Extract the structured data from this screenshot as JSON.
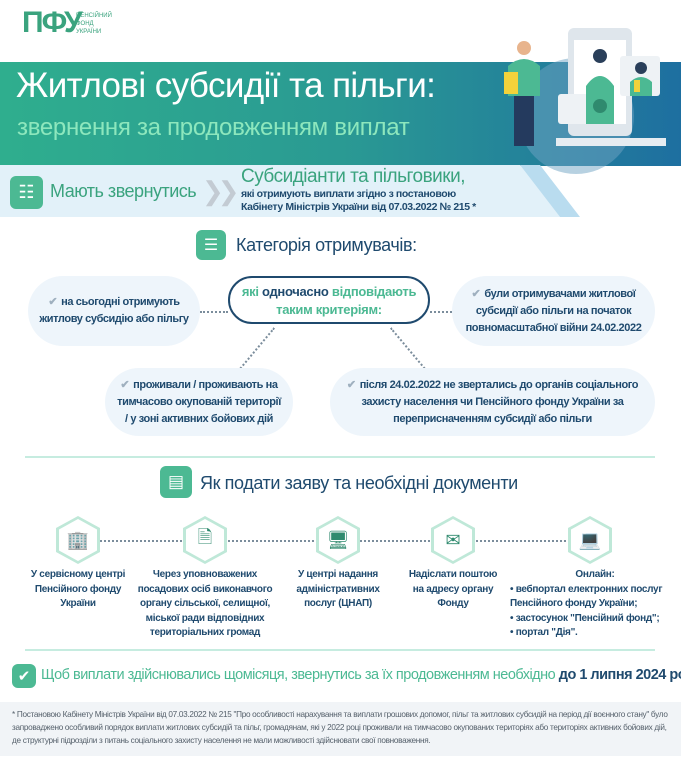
{
  "logo": {
    "abbr": "ПФУ",
    "line1": "ПЕНСІЙНИЙ",
    "line2": "ФОНД",
    "line3": "УКРАЇНИ"
  },
  "header": {
    "title": "Житлові субсидії та пільги:",
    "subtitle": "звернення за продовженням виплат"
  },
  "who": {
    "label": "Мають звернутись",
    "heading": "Субсидіанти та пільговики,",
    "line1": "які отримують виплати згідно з постановою",
    "line2": "Кабінету Міністрів України від 07.03.2022 № 215 *"
  },
  "category": {
    "title": "Категорія отримувачів:",
    "center": {
      "w1": "які",
      "w2": "одночасно",
      "w3": "відповідають",
      "w4": "таким критеріям:"
    },
    "criteria": [
      "на сьогодні отримують житлову субсидію або пільгу",
      "були отримувачами житлової субсидії або пільги на початок повномасштабної війни 24.02.2022",
      "проживали / проживають на тимчасово окупованій території / у зоні активних бойових дій",
      "після 24.02.2022 не звертались до органів соціального захисту населення чи Пенсійного фонду України за переприсначенням субсидії або пільги"
    ]
  },
  "how": {
    "title": "Як подати заяву та необхідні документи",
    "steps": [
      {
        "icon": "building-icon",
        "text": "У сервісному центрі Пенсійного фонду України"
      },
      {
        "icon": "document-icon",
        "text": "Через уповноважених посадових осіб виконавчого органу сільської, селищної, міської ради відповідних територіальних громад"
      },
      {
        "icon": "office-icon",
        "text": "У центрі надання адміністративних послуг (ЦНАП)"
      },
      {
        "icon": "mail-icon",
        "text": "Надіслати поштою на адресу органу Фонду"
      },
      {
        "icon": "laptop-icon",
        "text": "Онлайн:",
        "items": [
          "вебпортал електронних послуг Пенсійного фонду України;",
          "застосунок \"Пенсійний фонд\";",
          "портал \"Дія\"."
        ]
      }
    ]
  },
  "deadline": {
    "text": "Щоб виплати здійснювались щомісяця, звернутись за їх продовженням необхідно",
    "date": "до 1 липня 2024 року",
    "end": "."
  },
  "footnote": "* Постановою Кабінету Міністрів України від 07.03.2022 № 215 \"Про особливості нарахування та виплати грошових допомог, пільг та житлових субсидій на період дії воєнного стану\" було запроваджено особливий порядок виплати житлових субсидій та пільг, громадянам, які у 2022 році проживали на тимчасово окупованих територіях або територіях активних бойових дій, де структурні підрозділи з питань соціального захисту населення не мали можливості здійснювати свої повноваження.",
  "colors": {
    "green": "#4cb993",
    "dark_blue": "#1f4a6e",
    "banner_start": "#2fae8e",
    "banner_end": "#1e6fa0"
  }
}
